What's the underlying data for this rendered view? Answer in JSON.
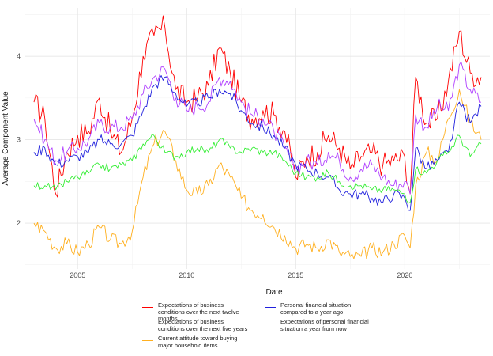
{
  "chart_data": {
    "type": "line",
    "xlabel": "Date",
    "ylabel": "Average Component Value",
    "xlim": [
      2002.6,
      2023.9
    ],
    "ylim": [
      1.45,
      4.58
    ],
    "x_ticks": [
      2005,
      2010,
      2015,
      2020
    ],
    "y_ticks": [
      2,
      3,
      4
    ],
    "grid": true,
    "legend_position": "bottom",
    "x": [
      2003.0,
      2003.5,
      2004.0,
      2004.5,
      2005.0,
      2005.5,
      2006.0,
      2006.5,
      2007.0,
      2007.5,
      2008.0,
      2008.5,
      2009.0,
      2009.5,
      2010.0,
      2010.5,
      2011.0,
      2011.5,
      2012.0,
      2012.5,
      2013.0,
      2013.5,
      2014.0,
      2014.5,
      2015.0,
      2015.5,
      2016.0,
      2016.5,
      2017.0,
      2017.5,
      2018.0,
      2018.5,
      2019.0,
      2019.5,
      2020.0,
      2020.25,
      2020.5,
      2021.0,
      2021.5,
      2022.0,
      2022.5,
      2023.0,
      2023.5
    ],
    "series": [
      {
        "name": "Expectations of business conditions over the next twelve months",
        "color": "#ff0000",
        "values": [
          3.45,
          3.25,
          2.35,
          2.85,
          3.05,
          3.1,
          3.5,
          3.1,
          2.85,
          3.25,
          4.0,
          4.25,
          4.35,
          3.6,
          3.45,
          3.5,
          3.65,
          4.1,
          3.8,
          3.45,
          3.25,
          3.35,
          3.3,
          3.1,
          2.55,
          2.8,
          2.85,
          3.05,
          2.9,
          2.65,
          2.8,
          2.85,
          2.7,
          2.75,
          2.8,
          2.35,
          3.75,
          3.2,
          3.25,
          3.7,
          4.3,
          3.8,
          3.75
        ]
      },
      {
        "name": "Expectations of business conditions over the next five years",
        "color": "#b040ff",
        "values": [
          3.25,
          3.0,
          2.75,
          2.85,
          2.9,
          3.0,
          3.2,
          3.15,
          3.15,
          3.25,
          3.55,
          3.75,
          3.85,
          3.5,
          3.35,
          3.4,
          3.45,
          3.75,
          3.7,
          3.45,
          3.3,
          3.25,
          3.1,
          2.9,
          2.65,
          2.75,
          2.7,
          2.85,
          2.75,
          2.55,
          2.65,
          2.7,
          2.55,
          2.45,
          2.5,
          2.35,
          3.3,
          3.15,
          3.4,
          3.35,
          3.9,
          3.6,
          3.45
        ]
      },
      {
        "name": "Current attitude toward buying major household items",
        "color": "#ffb020",
        "values": [
          2.0,
          1.9,
          1.7,
          1.75,
          1.65,
          1.75,
          1.95,
          1.8,
          1.75,
          1.9,
          2.55,
          2.95,
          3.1,
          2.75,
          2.4,
          2.35,
          2.45,
          2.7,
          2.55,
          2.3,
          2.15,
          2.1,
          1.95,
          1.85,
          1.7,
          1.75,
          1.7,
          1.8,
          1.65,
          1.6,
          1.6,
          1.7,
          1.65,
          1.75,
          1.85,
          1.7,
          2.45,
          2.85,
          2.75,
          3.25,
          3.6,
          3.2,
          3.0
        ]
      },
      {
        "name": "Personal financial situation compared to a year ago",
        "color": "#2020dd",
        "values": [
          2.85,
          2.9,
          2.7,
          2.75,
          2.8,
          2.85,
          3.0,
          2.95,
          2.95,
          3.05,
          3.35,
          3.65,
          3.75,
          3.55,
          3.4,
          3.45,
          3.5,
          3.6,
          3.55,
          3.35,
          3.2,
          3.15,
          3.05,
          2.9,
          2.7,
          2.65,
          2.6,
          2.55,
          2.4,
          2.35,
          2.35,
          2.3,
          2.25,
          2.35,
          2.3,
          2.15,
          2.9,
          2.65,
          2.75,
          2.85,
          3.45,
          3.2,
          3.4
        ]
      },
      {
        "name": "Expectations of personal financial situation a year from now",
        "color": "#33ee33",
        "values": [
          2.45,
          2.45,
          2.4,
          2.5,
          2.55,
          2.6,
          2.7,
          2.65,
          2.7,
          2.75,
          2.95,
          3.05,
          2.85,
          2.8,
          2.85,
          2.9,
          2.85,
          3.0,
          2.9,
          2.85,
          2.9,
          2.85,
          2.85,
          2.75,
          2.6,
          2.55,
          2.55,
          2.6,
          2.5,
          2.45,
          2.45,
          2.4,
          2.4,
          2.4,
          2.35,
          2.25,
          2.65,
          2.6,
          2.75,
          2.85,
          3.05,
          2.8,
          2.95
        ]
      }
    ]
  },
  "legend": {
    "items": [
      {
        "label": "Expectations of business conditions over the next twelve months",
        "color": "#ff0000"
      },
      {
        "label": "Expectations of business conditions over the next five years",
        "color": "#b040ff"
      },
      {
        "label": "Current attitude toward buying major household items",
        "color": "#ffb020"
      },
      {
        "label": "Personal financial situation compared to a year ago",
        "color": "#2020dd"
      },
      {
        "label": "Expectations of personal financial situation a year from now",
        "color": "#33ee33"
      }
    ]
  }
}
